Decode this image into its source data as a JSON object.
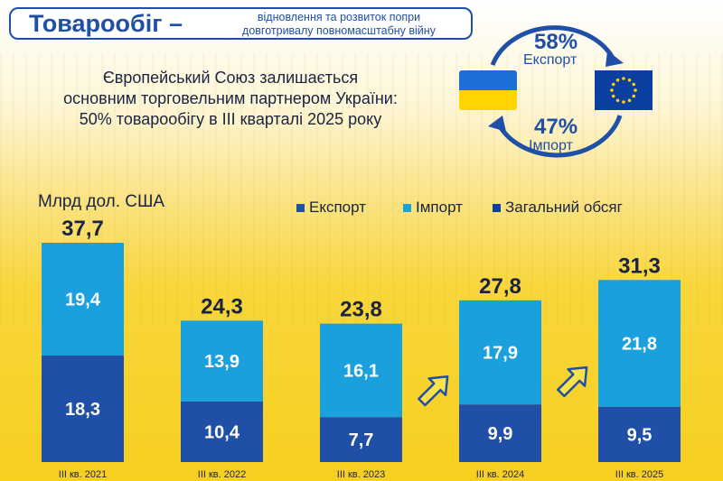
{
  "header": {
    "title": "Товарообіг –",
    "subtitle_line1": "відновлення та розвиток попри",
    "subtitle_line2": "довготривалу повномасштабну війну"
  },
  "lead": {
    "line1": "Європейський Союз залишається",
    "line2": "основним торговельним партнером України:",
    "line3": "50% товарообігу в ІІІ кварталі 2025 року"
  },
  "share": {
    "export_pct": "58%",
    "export_label": "Експорт",
    "import_pct": "47%",
    "import_label": "Імпорт"
  },
  "colors": {
    "export": "#1f4fa6",
    "import": "#1aa0dc",
    "total": "#0b3fa0",
    "title": "#1f4fa6",
    "text": "#1b2340"
  },
  "chart_data": {
    "type": "bar",
    "stacked": true,
    "unit_label": "Млрд дол. США",
    "categories": [
      "III кв. 2021",
      "III кв. 2022",
      "III кв. 2023",
      "III кв. 2024",
      "III кв. 2025"
    ],
    "legend_position": "top-right",
    "legend": [
      "Експорт",
      "Імпорт",
      "Загальний обсяг"
    ],
    "series": [
      {
        "name": "Експорт",
        "values": [
          18.3,
          10.4,
          7.7,
          9.9,
          9.5
        ],
        "labels": [
          "18,3",
          "10,4",
          "7,7",
          "9,9",
          "9,5"
        ]
      },
      {
        "name": "Імпорт",
        "values": [
          19.4,
          13.9,
          16.1,
          17.9,
          21.8
        ],
        "labels": [
          "19,4",
          "13,9",
          "16,1",
          "17,9",
          "21,8"
        ]
      }
    ],
    "totals": {
      "name": "Загальний обсяг",
      "values": [
        37.7,
        24.3,
        23.8,
        27.8,
        31.3
      ],
      "labels": [
        "37,7",
        "24,3",
        "23,8",
        "27,8",
        "31,3"
      ]
    },
    "ylim": [
      0,
      37.7
    ],
    "grid": false,
    "growth_arrows_before": [
      "III кв. 2024",
      "III кв. 2025"
    ]
  }
}
